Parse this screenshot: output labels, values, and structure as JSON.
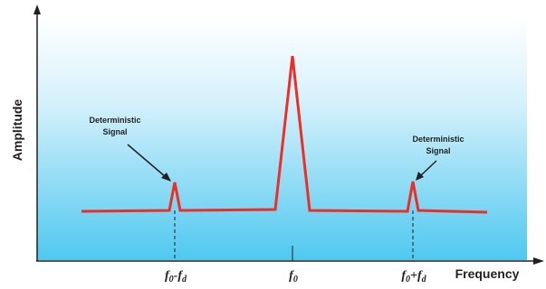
{
  "axes": {
    "y_title": "Amplitude",
    "x_title": "Frequency"
  },
  "annotations": {
    "left": {
      "line1": "Deterministic",
      "line2": "Signal"
    },
    "right": {
      "line1": "Deterministic",
      "line2": "Signal"
    }
  },
  "ticks": {
    "left": {
      "base": "f",
      "sub1": "0",
      "op": "-",
      "base2": "f",
      "sub2": "d"
    },
    "center": {
      "base": "f",
      "sub1": "0"
    },
    "right": {
      "base": "f",
      "sub1": "0",
      "op": "+",
      "base2": "f",
      "sub2": "d"
    }
  },
  "colors": {
    "signal": "#ee2e24",
    "axis": "#231f20",
    "gradient_top": "#ffffff",
    "gradient_bottom": "#4fc8f0"
  }
}
